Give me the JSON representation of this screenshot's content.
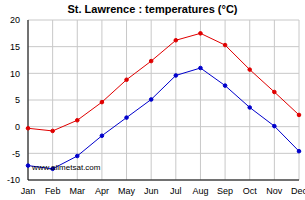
{
  "chart_data": {
    "type": "line",
    "title": "St. Lawrence : temperatures (°C)",
    "annotation": "www.allmetsat.com",
    "categories": [
      "Jan",
      "Feb",
      "Mar",
      "Apr",
      "May",
      "Jun",
      "Jul",
      "Aug",
      "Sep",
      "Oct",
      "Nov",
      "Dec"
    ],
    "series": [
      {
        "color": "#e00000",
        "marker": "circle",
        "values": [
          -0.3,
          -0.8,
          1.2,
          4.6,
          8.8,
          12.3,
          16.2,
          17.5,
          15.3,
          10.7,
          6.5,
          2.2
        ]
      },
      {
        "color": "#0000cc",
        "marker": "circle",
        "values": [
          -7.3,
          -7.9,
          -5.5,
          -1.7,
          1.7,
          5.1,
          9.6,
          11.0,
          7.7,
          3.6,
          0.1,
          -4.6
        ]
      }
    ],
    "ylim": [
      -10,
      20
    ],
    "yticks": [
      -10,
      -5,
      0,
      5,
      10,
      15,
      20
    ],
    "grid": true
  }
}
